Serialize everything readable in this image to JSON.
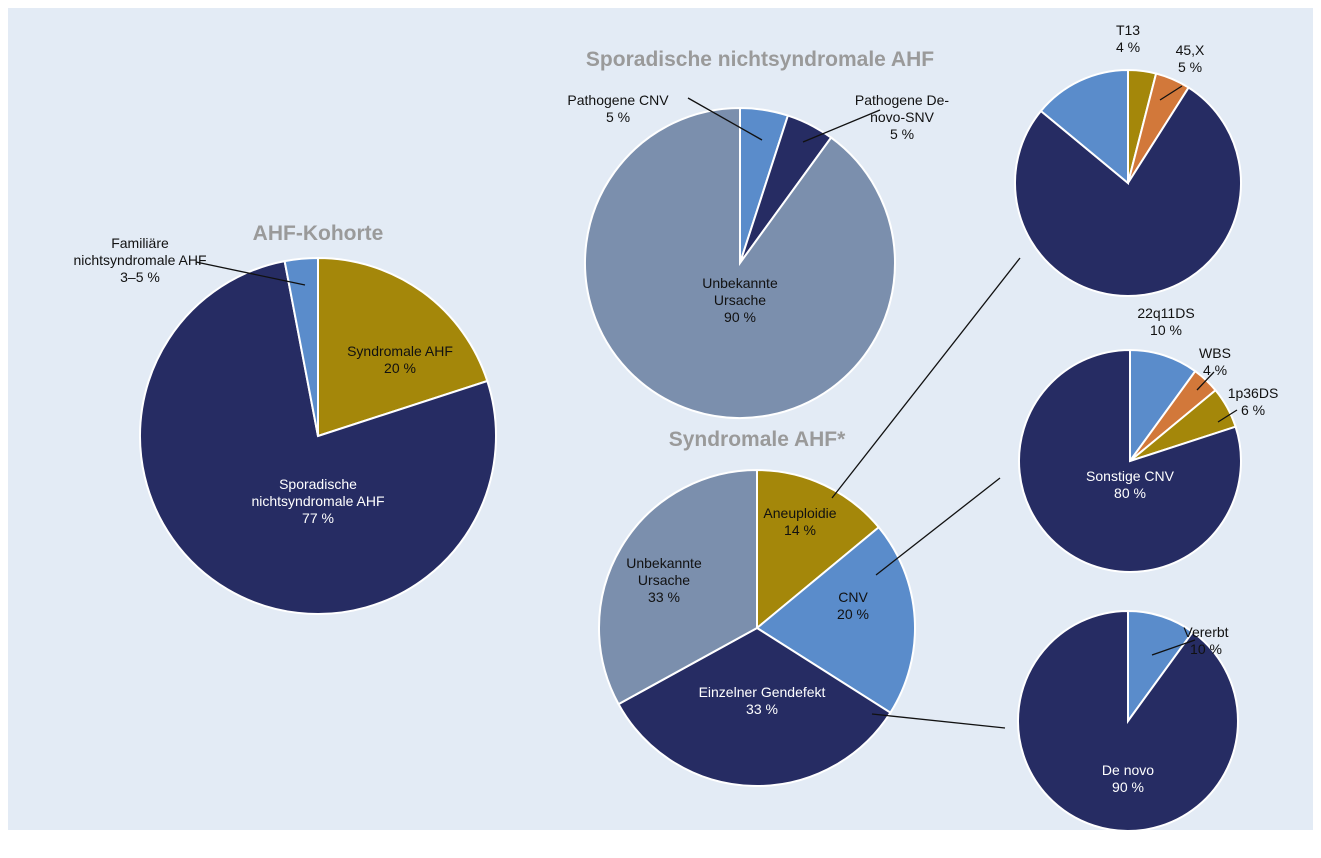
{
  "chart_data": [
    {
      "type": "pie",
      "title": "AHF-Kohorte",
      "categories": [
        "Syndromale AHF",
        "Sporadische nichtsyndromale AHF",
        "Familiäre nichtsyndromale AHF"
      ],
      "values": [
        20,
        77,
        3
      ],
      "value_labels": [
        "20 %",
        "77 %",
        "3–5 %"
      ],
      "colors": [
        "#a4870a",
        "#262c63",
        "#5a8ccb"
      ]
    },
    {
      "type": "pie",
      "title": "Sporadische nichtsyndromale AHF",
      "categories": [
        "Pathogene CNV",
        "Pathogene De-novo-SNV",
        "Unbekannte Ursache"
      ],
      "values": [
        5,
        5,
        90
      ],
      "value_labels": [
        "5 %",
        "5 %",
        "90 %"
      ],
      "colors": [
        "#5a8ccb",
        "#262c63",
        "#7b8fad"
      ]
    },
    {
      "type": "pie",
      "title": "Syndromale AHF*",
      "categories": [
        "Aneuploidie",
        "CNV",
        "Einzelner Gendefekt",
        "Unbekannte Ursache"
      ],
      "values": [
        14,
        20,
        33,
        33
      ],
      "value_labels": [
        "14 %",
        "20 %",
        "33 %",
        "33 %"
      ],
      "colors": [
        "#a4870a",
        "#5a8ccb",
        "#262c63",
        "#7b8fad"
      ]
    },
    {
      "type": "pie",
      "categories": [
        "T13",
        "45,X",
        null,
        null
      ],
      "values": [
        4,
        5,
        77,
        14
      ],
      "value_labels": [
        "4 %",
        "5 %",
        null,
        null
      ],
      "colors": [
        "#a4870a",
        "#d2783a",
        "#262c63",
        "#5a8ccb"
      ]
    },
    {
      "type": "pie",
      "categories": [
        "22q11DS",
        "WBS",
        "1p36DS",
        "Sonstige CNV"
      ],
      "values": [
        10,
        4,
        6,
        80
      ],
      "value_labels": [
        "10 %",
        "4 %",
        "6 %",
        "80 %"
      ],
      "colors": [
        "#5a8ccb",
        "#d2783a",
        "#a4870a",
        "#262c63"
      ]
    },
    {
      "type": "pie",
      "categories": [
        "Vererbt",
        "De novo"
      ],
      "values": [
        10,
        90
      ],
      "value_labels": [
        "10 %",
        "90 %"
      ],
      "colors": [
        "#5a8ccb",
        "#262c63"
      ]
    }
  ]
}
